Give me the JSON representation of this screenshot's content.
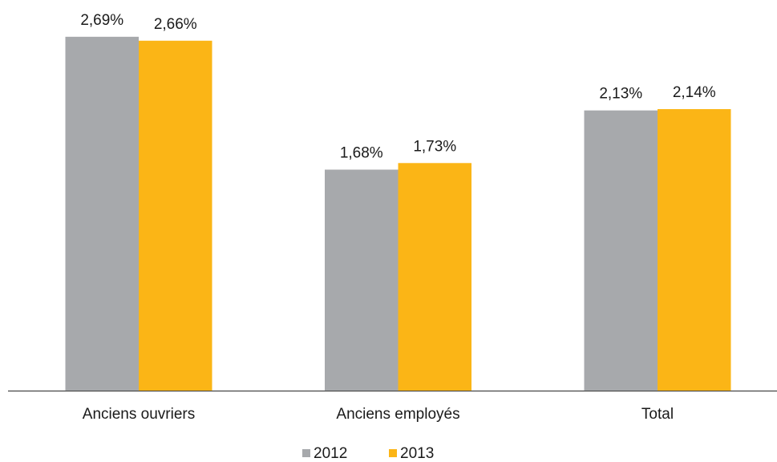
{
  "chart_data": {
    "type": "bar",
    "categories": [
      "Anciens ouvriers",
      "Anciens employés",
      "Total"
    ],
    "series": [
      {
        "name": "2012",
        "color": "#a7a9ac",
        "values": [
          2.69,
          1.68,
          2.13
        ],
        "value_labels": [
          "2,69%",
          "1,68%",
          "2,13%"
        ]
      },
      {
        "name": "2013",
        "color": "#fbb516",
        "values": [
          2.66,
          1.73,
          2.14
        ],
        "value_labels": [
          "2,66%",
          "1,73%",
          "2,14%"
        ]
      }
    ],
    "legend": "bottom"
  }
}
